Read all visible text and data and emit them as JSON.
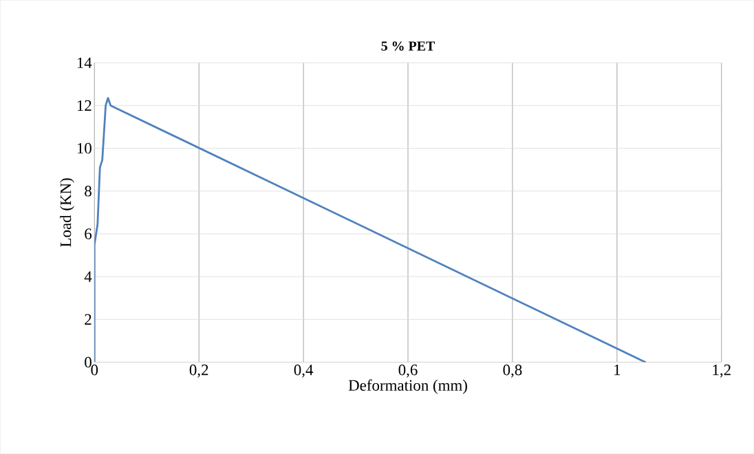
{
  "chart_data": {
    "type": "line",
    "title": "5 % PET",
    "xlabel": "Deformation (mm)",
    "ylabel": "Load (KN)",
    "x": [
      0,
      0,
      0.006,
      0.0105,
      0.015,
      0.0215,
      0.026,
      0.031,
      1.05,
      1.055
    ],
    "series": [
      {
        "color": "#4f81bd",
        "values": [
          0,
          5.5,
          6.45,
          9.1,
          9.45,
          12.0,
          12.35,
          12.0,
          0.05,
          0
        ]
      }
    ],
    "xlim": [
      0,
      1.2
    ],
    "ylim": [
      0,
      14
    ],
    "xticks": [
      0,
      {
        "value": 0.2,
        "label": "0,2"
      },
      {
        "value": 0.4,
        "label": "0,4"
      },
      {
        "value": 0.6,
        "label": "0,6"
      },
      {
        "value": 0.8,
        "label": "0,8"
      },
      1,
      {
        "value": 1.2,
        "label": "1,2"
      }
    ],
    "yticks": [
      0,
      2,
      4,
      6,
      8,
      10,
      12,
      14
    ],
    "grid": true,
    "marker": "none",
    "line_style": "solid"
  }
}
